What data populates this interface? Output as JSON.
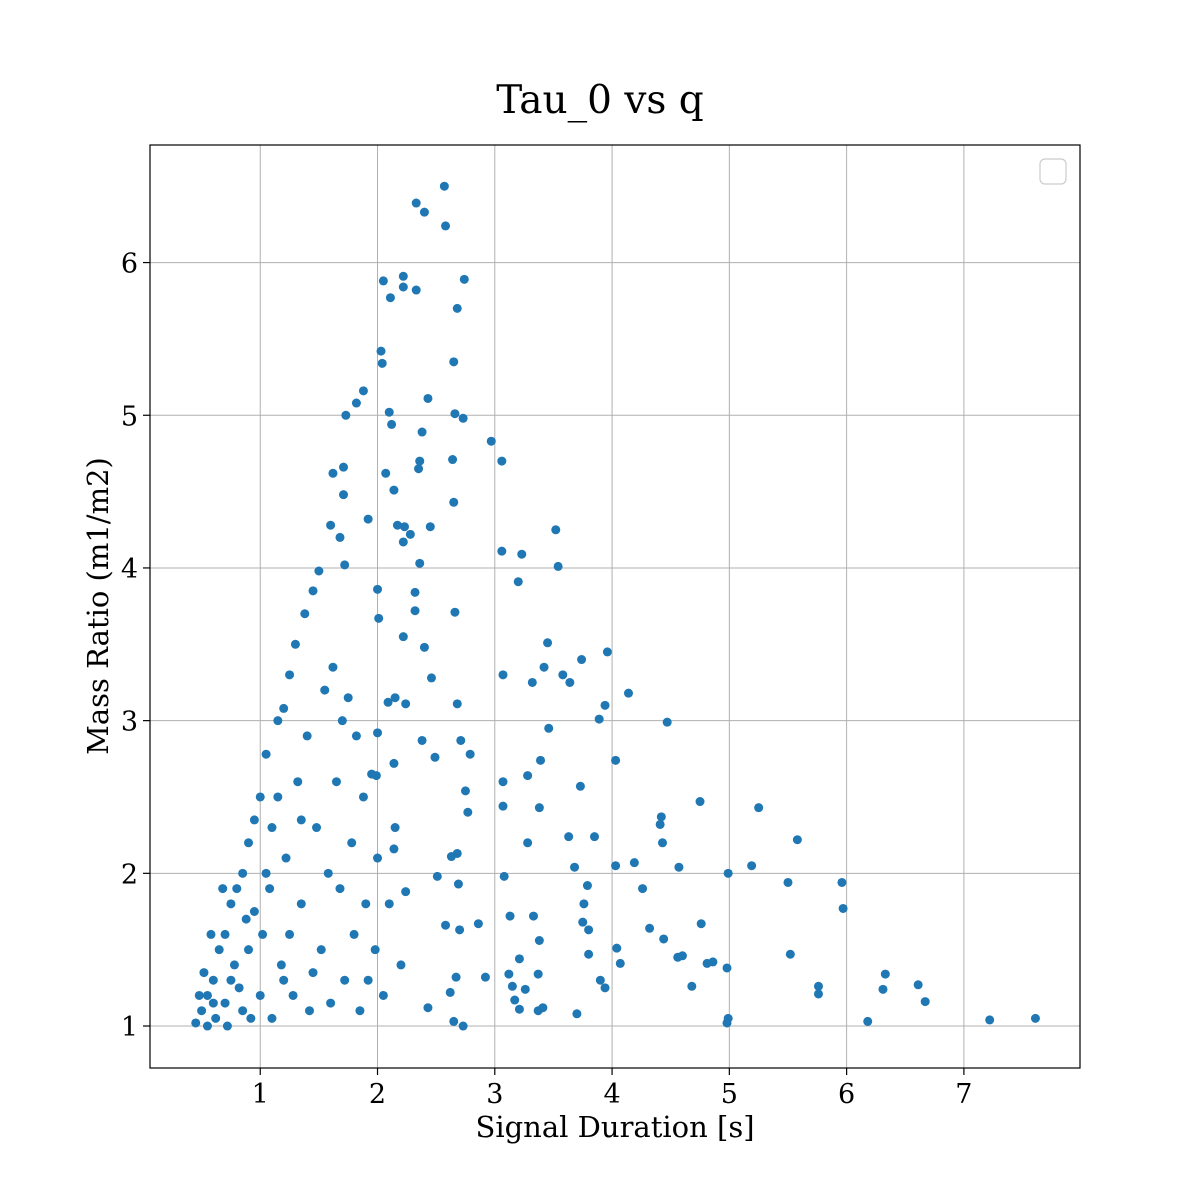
{
  "chart_data": {
    "type": "scatter",
    "title": "Tau_0 vs q",
    "xlabel": "Signal Duration [s]",
    "ylabel": "Mass Ratio (m1/m2)",
    "color": "#1f77b4",
    "grid": true,
    "xlim": [
      0.06,
      7.99
    ],
    "ylim": [
      0.725,
      6.77
    ],
    "xticks": [
      1,
      2,
      3,
      4,
      5,
      6,
      7
    ],
    "yticks": [
      1,
      2,
      3,
      4,
      5,
      6
    ],
    "x": [
      2.57,
      2.33,
      2.4,
      2.58,
      2.22,
      2.05,
      2.74,
      2.22,
      2.33,
      2.11,
      2.68,
      2.03,
      2.04,
      2.65,
      1.88,
      2.43,
      1.82,
      2.1,
      2.66,
      1.73,
      2.73,
      2.12,
      2.38,
      2.97,
      2.07,
      3.06,
      2.36,
      2.64,
      1.71,
      2.35,
      1.62,
      2.14,
      1.71,
      2.65,
      1.92,
      1.6,
      2.17,
      2.23,
      2.45,
      3.52,
      2.28,
      1.68,
      2.22,
      3.06,
      3.23,
      2.36,
      3.54,
      1.72,
      3.2,
      2.0,
      2.32,
      2.66,
      2.32,
      2.01,
      3.45,
      2.22,
      2.4,
      3.96,
      3.74,
      3.42,
      3.58,
      3.07,
      2.46,
      3.64,
      3.32,
      2.15,
      4.14,
      2.09,
      3.94,
      2.24,
      2.68,
      3.89,
      4.47,
      3.46,
      2.0,
      2.38,
      2.71,
      2.79,
      2.49,
      3.39,
      4.03,
      2.14,
      3.28,
      3.73,
      2.75,
      3.07,
      1.99,
      4.75,
      3.07,
      3.38,
      5.25,
      4.42,
      4.41,
      2.77,
      3.63,
      3.85,
      5.58,
      4.43,
      3.28,
      2.14,
      2.68,
      2.63,
      4.19,
      3.68,
      4.57,
      5.19,
      4.03,
      4.99,
      3.08,
      2.69,
      5.5,
      5.96,
      3.79,
      4.26,
      2.51,
      2.24,
      3.76,
      5.97,
      3.13,
      3.33,
      4.76,
      2.86,
      3.75,
      4.32,
      2.58,
      3.8,
      2.7,
      4.44,
      3.38,
      4.04,
      5.52,
      3.8,
      4.6,
      4.56,
      3.21,
      4.86,
      4.07,
      4.81,
      4.98,
      3.12,
      3.37,
      6.33,
      2.92,
      2.67,
      3.9,
      6.61,
      3.94,
      5.76,
      4.68,
      3.15,
      6.31,
      3.26,
      5.76,
      2.62,
      3.17,
      6.67,
      3.41,
      3.21,
      2.43,
      3.37,
      3.7,
      4.99,
      7.22,
      7.61,
      4.98,
      6.18,
      2.65,
      2.73,
      0.45,
      0.5,
      0.55,
      0.6,
      0.62,
      0.65,
      0.7,
      0.7,
      0.75,
      0.78,
      0.8,
      0.82,
      0.85,
      0.88,
      0.9,
      0.92,
      0.95,
      1.0,
      1.02,
      1.05,
      1.08,
      1.1,
      1.15,
      1.18,
      1.2,
      1.22,
      1.25,
      1.28,
      1.3,
      1.32,
      1.35,
      1.38,
      1.4,
      1.42,
      1.45,
      1.48,
      1.5,
      1.52,
      1.55,
      1.58,
      1.6,
      1.62,
      1.65,
      1.68,
      1.7,
      1.72,
      1.75,
      1.78,
      1.8,
      1.82,
      1.85,
      1.88,
      1.9,
      1.92,
      1.95,
      1.98,
      2.0,
      2.05,
      2.1,
      2.15,
      2.2,
      0.52,
      0.58,
      0.68,
      0.72,
      0.85,
      0.6,
      0.9,
      1.0,
      1.1,
      1.2,
      0.48,
      0.55,
      0.75,
      0.95,
      1.05,
      1.15,
      1.25,
      1.35,
      1.45
    ],
    "y": [
      6.5,
      6.39,
      6.33,
      6.24,
      5.91,
      5.88,
      5.89,
      5.84,
      5.82,
      5.77,
      5.7,
      5.42,
      5.34,
      5.35,
      5.16,
      5.11,
      5.08,
      5.02,
      5.01,
      5.0,
      4.98,
      4.94,
      4.89,
      4.83,
      4.62,
      4.7,
      4.7,
      4.71,
      4.66,
      4.65,
      4.62,
      4.51,
      4.48,
      4.43,
      4.32,
      4.28,
      4.28,
      4.27,
      4.27,
      4.25,
      4.22,
      4.2,
      4.17,
      4.11,
      4.09,
      4.03,
      4.01,
      4.02,
      3.91,
      3.86,
      3.84,
      3.71,
      3.72,
      3.67,
      3.51,
      3.55,
      3.48,
      3.45,
      3.4,
      3.35,
      3.3,
      3.3,
      3.28,
      3.25,
      3.25,
      3.15,
      3.18,
      3.12,
      3.1,
      3.11,
      3.11,
      3.01,
      2.99,
      2.95,
      2.92,
      2.87,
      2.87,
      2.78,
      2.76,
      2.74,
      2.74,
      2.72,
      2.64,
      2.57,
      2.54,
      2.6,
      2.64,
      2.47,
      2.44,
      2.43,
      2.43,
      2.37,
      2.32,
      2.4,
      2.24,
      2.24,
      2.22,
      2.2,
      2.2,
      2.16,
      2.13,
      2.11,
      2.07,
      2.04,
      2.04,
      2.05,
      2.05,
      2.0,
      1.98,
      1.93,
      1.94,
      1.94,
      1.92,
      1.9,
      1.98,
      1.88,
      1.8,
      1.77,
      1.72,
      1.72,
      1.67,
      1.67,
      1.68,
      1.64,
      1.66,
      1.63,
      1.63,
      1.57,
      1.56,
      1.51,
      1.47,
      1.47,
      1.46,
      1.45,
      1.44,
      1.42,
      1.41,
      1.41,
      1.38,
      1.34,
      1.34,
      1.34,
      1.32,
      1.32,
      1.3,
      1.27,
      1.25,
      1.26,
      1.26,
      1.26,
      1.24,
      1.24,
      1.21,
      1.22,
      1.17,
      1.16,
      1.12,
      1.11,
      1.12,
      1.1,
      1.08,
      1.05,
      1.04,
      1.05,
      1.02,
      1.03,
      1.03,
      1.0,
      1.02,
      1.1,
      1.2,
      1.3,
      1.05,
      1.5,
      1.6,
      1.15,
      1.8,
      1.4,
      1.9,
      1.25,
      2.0,
      1.7,
      2.2,
      1.05,
      2.35,
      2.5,
      1.6,
      2.78,
      1.9,
      2.3,
      3.0,
      1.4,
      3.08,
      2.1,
      3.3,
      1.2,
      3.5,
      2.6,
      1.8,
      3.7,
      2.9,
      1.1,
      3.85,
      2.3,
      3.98,
      1.5,
      3.2,
      2.0,
      1.15,
      3.35,
      2.6,
      1.9,
      3.0,
      1.3,
      3.15,
      2.2,
      1.6,
      2.9,
      1.1,
      2.5,
      1.8,
      1.3,
      2.65,
      1.5,
      2.1,
      1.2,
      1.8,
      2.3,
      1.4,
      1.35,
      1.6,
      1.9,
      1.0,
      1.1,
      1.15,
      1.5,
      1.2,
      1.05,
      1.3,
      1.2,
      1.0,
      1.3,
      1.75,
      2.0,
      2.5,
      1.6,
      2.35,
      1.35
    ]
  }
}
